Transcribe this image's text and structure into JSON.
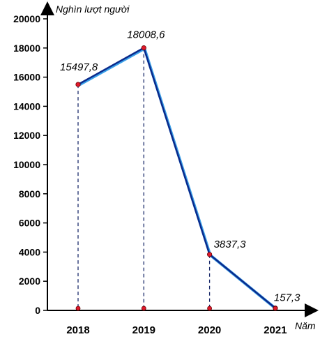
{
  "chart_data": {
    "type": "line",
    "title": "",
    "ylabel": "Nghìn lượt người",
    "xlabel": "Năm",
    "categories": [
      "2018",
      "2019",
      "2020",
      "2021"
    ],
    "series": [
      {
        "values": [
          15497.8,
          18008.6,
          3837.3,
          157.3
        ],
        "labels": [
          "15497,8",
          "18008,6",
          "3837,3",
          "157,3"
        ]
      }
    ],
    "yticks": [
      "0",
      "2000",
      "4000",
      "6000",
      "8000",
      "10000",
      "12000",
      "14000",
      "16000",
      "18000",
      "20000"
    ],
    "ylim": [
      0,
      20000
    ],
    "grid": false,
    "colors": {
      "line": "#0a2a8c",
      "line_shadow": "#3aa0e8",
      "marker": "#e0192b",
      "axis": "#000000",
      "guide": "#1a2a6a"
    }
  }
}
